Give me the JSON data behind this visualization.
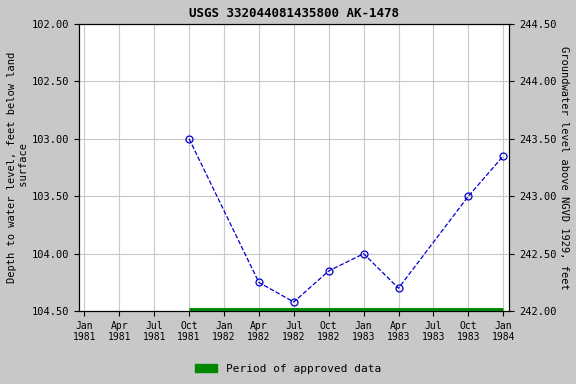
{
  "title": "USGS 332044081435800 AK-1478",
  "ylabel_left": "Depth to water level, feet below land\n surface",
  "ylabel_right": "Groundwater level above NGVD 1929, feet",
  "ylim_left": [
    104.5,
    102.0
  ],
  "ylim_right": [
    242.0,
    244.5
  ],
  "yticks_left": [
    102.0,
    102.5,
    103.0,
    103.5,
    104.0,
    104.5
  ],
  "yticks_right": [
    242.0,
    242.5,
    243.0,
    243.5,
    244.0,
    244.5
  ],
  "xtick_positions": [
    0,
    3,
    6,
    9,
    12,
    15,
    18,
    21,
    24,
    27,
    30,
    33,
    36
  ],
  "xtick_labels": [
    "Jan\n1981",
    "Apr\n1981",
    "Jul\n1981",
    "Oct\n1981",
    "Jan\n1982",
    "Apr\n1982",
    "Jul\n1982",
    "Oct\n1982",
    "Jan\n1983",
    "Apr\n1983",
    "Jul\n1983",
    "Oct\n1983",
    "Jan\n1984"
  ],
  "data_x": [
    9,
    15,
    18,
    21,
    24,
    27,
    33,
    36
  ],
  "data_y": [
    103.0,
    104.25,
    104.42,
    104.15,
    104.0,
    104.3,
    103.5,
    103.15
  ],
  "approved_bar_xstart": 9,
  "approved_bar_xend": 36,
  "approved_bar_y": 104.5,
  "line_color": "#0000cc",
  "approved_color": "#008800",
  "marker_color": "#0000cc",
  "fig_bg_color": "#c8c8c8",
  "plot_bg_color": "#ffffff",
  "grid_color": "#c8c8c8",
  "legend_label": "Period of approved data",
  "title_fontsize": 9,
  "axis_fontsize": 7.5,
  "tick_fontsize": 7.5,
  "xlabel_fontsize": 7.0
}
